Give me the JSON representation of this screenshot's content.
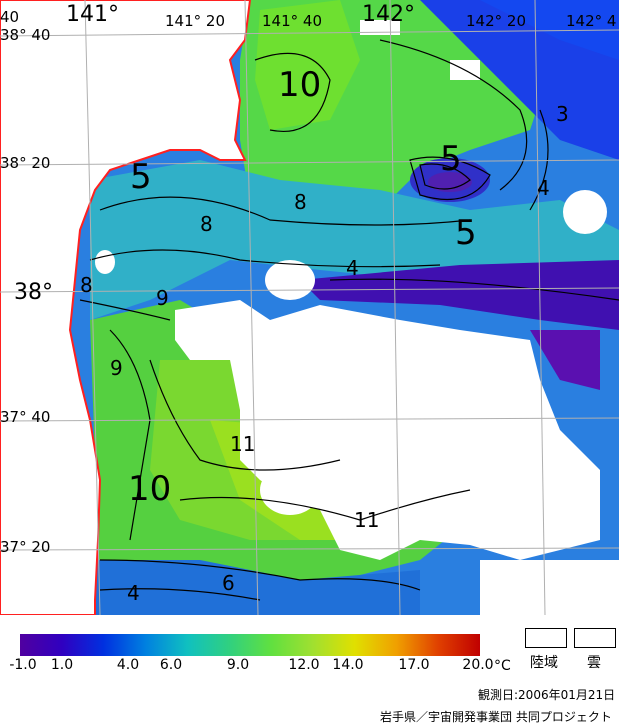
{
  "map": {
    "lat_labels": [
      "38° 40",
      "38° 20",
      "38°",
      "37° 40",
      "37° 20"
    ],
    "lon_labels": [
      "141°",
      "141° 20",
      "141° 40",
      "142°",
      "142° 20",
      "142° 4"
    ],
    "corner_label": "40",
    "contour_labels": [
      "10",
      "5",
      "3",
      "5",
      "4",
      "8",
      "5",
      "8",
      "8",
      "4",
      "9",
      "9",
      "10",
      "11",
      "11",
      "6",
      "4"
    ],
    "colors": {
      "land_border": "#ff2020",
      "cloud": "#ffffff",
      "grid": "#b0b0b0",
      "contour": "#000000"
    }
  },
  "colorbar": {
    "gradient": [
      "#5000a0",
      "#3000c0",
      "#0030e0",
      "#0080e0",
      "#10c0c0",
      "#30d080",
      "#60e040",
      "#a0e030",
      "#e0e000",
      "#f0a000",
      "#e04000",
      "#c00000"
    ],
    "ticks": [
      "-1.0",
      "1.0",
      "4.0",
      "6.0",
      "9.0",
      "12.0",
      "14.0",
      "17.0",
      "20.0"
    ],
    "unit": "°C"
  },
  "legend": {
    "land_label": "陸域",
    "cloud_label": "雲"
  },
  "footer": {
    "date": "観測日:2006年01月21日",
    "credit": "岩手県／宇宙開発事業団 共同プロジェクト"
  }
}
